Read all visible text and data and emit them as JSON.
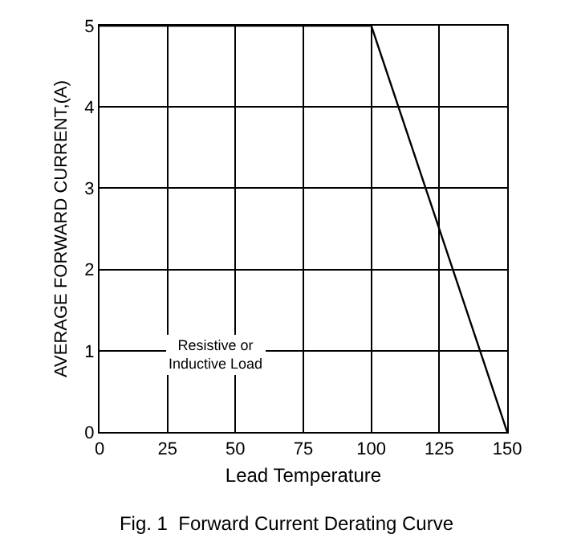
{
  "chart_data": {
    "type": "line",
    "title": "Fig. 1  Forward Current Derating Curve",
    "xlabel": "Lead Temperature",
    "ylabel": "AVERAGE FORWARD CURRENT,(A)",
    "x": [
      0,
      100,
      150
    ],
    "series": [
      {
        "color": "#000000",
        "values": [
          5,
          5,
          0
        ]
      }
    ],
    "xlim": [
      0,
      150
    ],
    "xticks": [
      0,
      25,
      50,
      75,
      100,
      125,
      150
    ],
    "ylim": [
      0,
      5
    ],
    "yticks": [
      0,
      1,
      2,
      3,
      4,
      5
    ],
    "grid": true,
    "marker": "none",
    "line_style": "solid",
    "annotations": [
      "Resistive or\nInductive Load"
    ]
  }
}
